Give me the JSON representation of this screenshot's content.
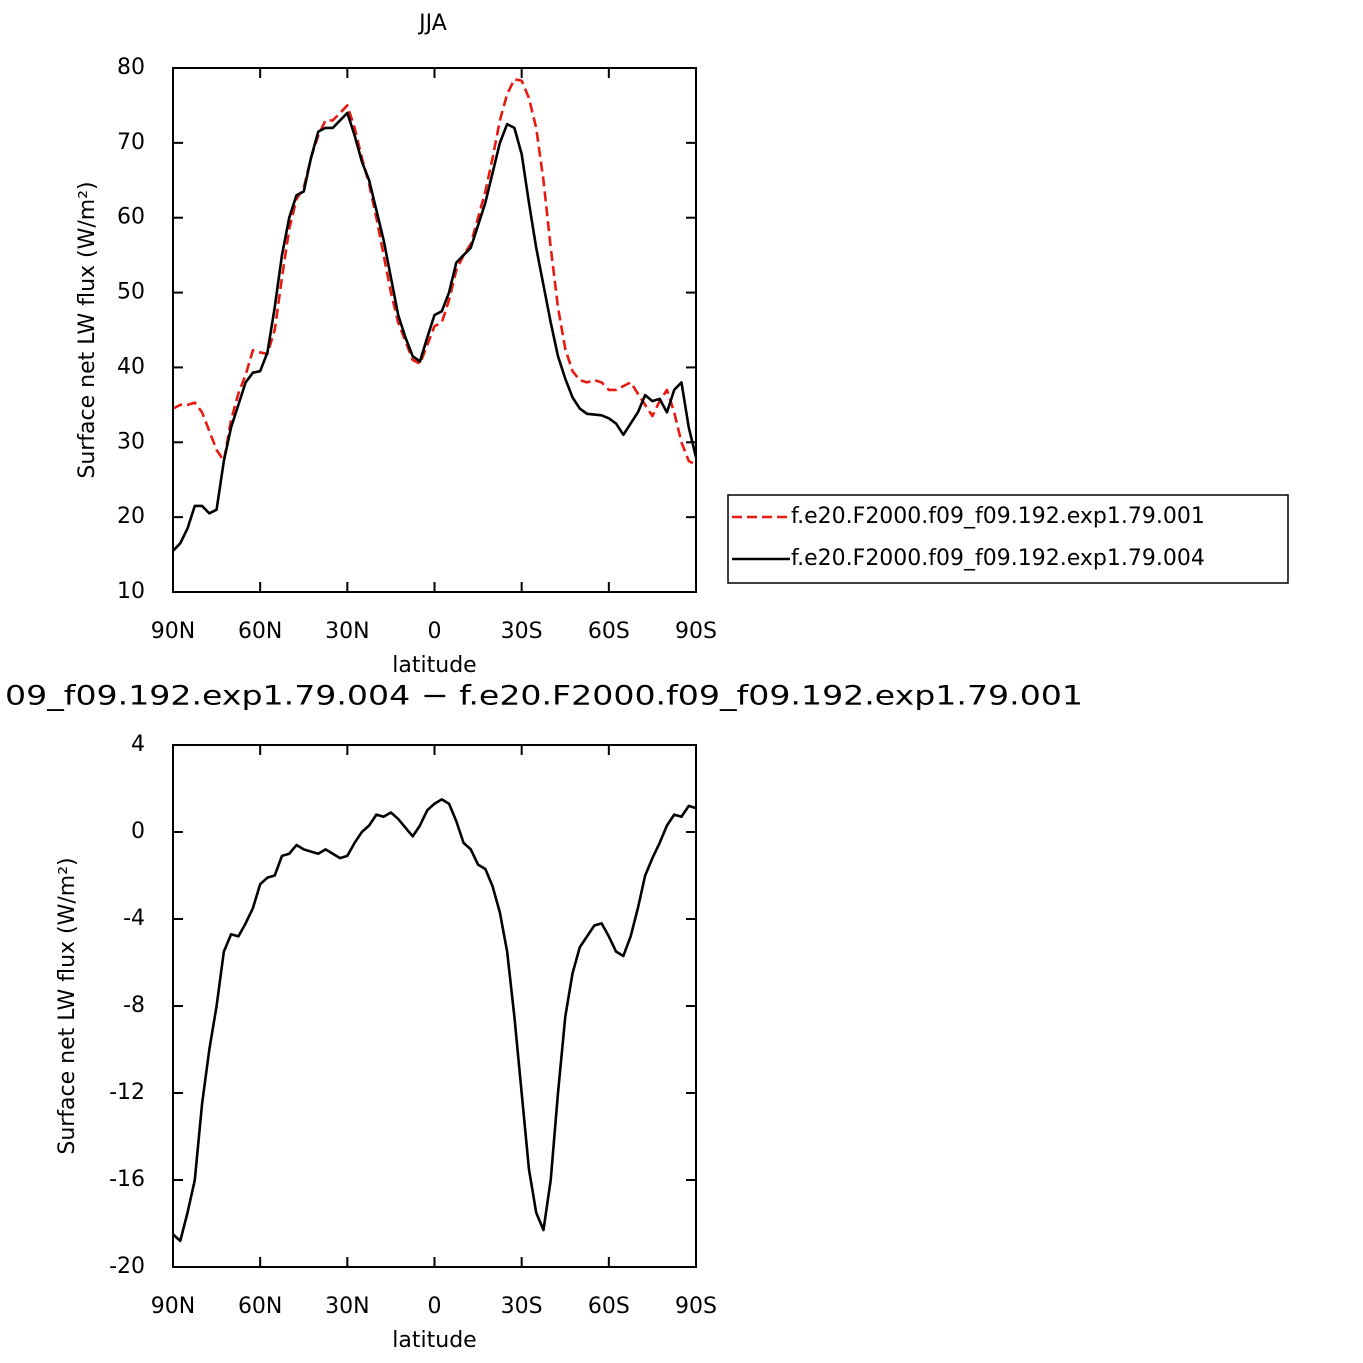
{
  "chart_data": [
    {
      "type": "line",
      "title": "JJA",
      "xlabel": "latitude",
      "ylabel": "Surface net LW flux (W/m²)",
      "x": [
        90,
        87.5,
        85,
        82.5,
        80,
        77.5,
        75,
        72.5,
        70,
        67.5,
        65,
        62.5,
        60,
        57.5,
        55,
        52.5,
        50,
        47.5,
        45,
        42.5,
        40,
        37.5,
        35,
        32.5,
        30,
        27.5,
        25,
        22.5,
        20,
        17.5,
        15,
        12.5,
        10,
        7.5,
        5,
        2.5,
        0,
        -2.5,
        -5,
        -7.5,
        -10,
        -12.5,
        -15,
        -17.5,
        -20,
        -22.5,
        -25,
        -27.5,
        -30,
        -32.5,
        -35,
        -37.5,
        -40,
        -42.5,
        -45,
        -47.5,
        -50,
        -52.5,
        -55,
        -57.5,
        -60,
        -62.5,
        -65,
        -67.5,
        -70,
        -72.5,
        -75,
        -77.5,
        -80,
        -82.5,
        -85,
        -87.5,
        -90
      ],
      "series": [
        {
          "name": "f.e20.F2000.f09_f09.192.exp1.79.001",
          "color": "#e8190f",
          "linestyle": "dashed",
          "values": [
            34.5,
            35,
            35,
            35.3,
            34,
            31.5,
            29,
            27.5,
            33,
            36.5,
            39,
            42.3,
            42,
            41.8,
            45,
            52,
            58.5,
            62.5,
            64,
            68,
            71,
            73,
            73,
            74,
            75,
            72,
            68,
            64.5,
            60,
            55,
            50,
            46,
            43.5,
            41,
            40.5,
            43,
            45.5,
            46,
            49,
            53,
            55,
            56.5,
            60,
            63.5,
            68,
            73,
            76.5,
            78.5,
            78.3,
            76,
            72,
            65,
            56,
            48,
            42.5,
            39.5,
            38.3,
            38,
            38.3,
            38,
            37,
            37,
            37.5,
            38,
            36.5,
            35,
            33.5,
            35.5,
            37,
            34,
            30,
            27.5,
            27
          ]
        },
        {
          "name": "f.e20.F2000.f09_f09.192.exp1.79.004",
          "color": "#000000",
          "linestyle": "solid",
          "values": [
            15.5,
            16.5,
            18.5,
            21.5,
            21.5,
            20.5,
            21,
            27.5,
            32,
            35,
            38,
            39.3,
            39.5,
            42,
            48,
            55,
            60,
            63,
            63.5,
            68,
            71.5,
            72,
            72,
            73,
            74,
            71,
            67.5,
            65,
            61,
            57,
            52,
            47,
            44,
            41.5,
            40.8,
            44,
            47,
            47.5,
            50,
            54,
            55,
            56,
            59,
            62,
            66,
            70,
            72.5,
            72,
            68.5,
            62,
            56,
            51,
            46,
            41.5,
            38.5,
            36,
            34.5,
            33.8,
            33.7,
            33.6,
            33.2,
            32.5,
            31,
            32.5,
            34,
            36.3,
            35.5,
            35.8,
            34,
            37,
            38,
            32,
            28
          ]
        }
      ],
      "xlim": [
        90,
        -90
      ],
      "xticks": [
        {
          "value": 90,
          "label": "90N"
        },
        {
          "value": 60,
          "label": "60N"
        },
        {
          "value": 30,
          "label": "30N"
        },
        0,
        {
          "value": -30,
          "label": "30S"
        },
        {
          "value": -60,
          "label": "60S"
        },
        {
          "value": -90,
          "label": "90S"
        }
      ],
      "ylim": [
        10,
        80
      ],
      "yticks": [
        10,
        20,
        30,
        40,
        50,
        60,
        70,
        80
      ],
      "legend": "right"
    },
    {
      "type": "line",
      "title": "09_f09.192.exp1.79.004 − f.e20.F2000.f09_f09.192.exp1.79.001",
      "xlabel": "latitude",
      "ylabel": "Surface net LW flux (W/m²)",
      "x": [
        90,
        87.5,
        85,
        82.5,
        80,
        77.5,
        75,
        72.5,
        70,
        67.5,
        65,
        62.5,
        60,
        57.5,
        55,
        52.5,
        50,
        47.5,
        45,
        42.5,
        40,
        37.5,
        35,
        32.5,
        30,
        27.5,
        25,
        22.5,
        20,
        17.5,
        15,
        12.5,
        10,
        7.5,
        5,
        2.5,
        0,
        -2.5,
        -5,
        -7.5,
        -10,
        -12.5,
        -15,
        -17.5,
        -20,
        -22.5,
        -25,
        -27.5,
        -30,
        -32.5,
        -35,
        -37.5,
        -40,
        -42.5,
        -45,
        -47.5,
        -50,
        -52.5,
        -55,
        -57.5,
        -60,
        -62.5,
        -65,
        -67.5,
        -70,
        -72.5,
        -75,
        -77.5,
        -80,
        -82.5,
        -85,
        -87.5,
        -90
      ],
      "series": [
        {
          "color": "#000000",
          "linestyle": "solid",
          "values": [
            -18.5,
            -18.8,
            -17.5,
            -16,
            -12.5,
            -10,
            -8,
            -5.5,
            -4.7,
            -4.8,
            -4.2,
            -3.5,
            -2.4,
            -2.1,
            -2,
            -1.1,
            -1,
            -0.6,
            -0.8,
            -0.9,
            -1,
            -0.8,
            -1,
            -1.2,
            -1.1,
            -0.5,
            0,
            0.3,
            0.8,
            0.7,
            0.9,
            0.6,
            0.2,
            -0.2,
            0.3,
            1,
            1.3,
            1.5,
            1.3,
            0.5,
            -0.5,
            -0.8,
            -1.5,
            -1.7,
            -2.5,
            -3.7,
            -5.5,
            -8.5,
            -12,
            -15.5,
            -17.5,
            -18.3,
            -16,
            -12,
            -8.5,
            -6.5,
            -5.3,
            -4.8,
            -4.3,
            -4.2,
            -4.8,
            -5.5,
            -5.7,
            -4.8,
            -3.5,
            -2,
            -1.2,
            -0.5,
            0.3,
            0.8,
            0.7,
            1.2,
            1.1
          ]
        }
      ],
      "xlim": [
        90,
        -90
      ],
      "xticks": [
        {
          "value": 90,
          "label": "90N"
        },
        {
          "value": 60,
          "label": "60N"
        },
        {
          "value": 30,
          "label": "30N"
        },
        0,
        {
          "value": -30,
          "label": "30S"
        },
        {
          "value": -60,
          "label": "60S"
        },
        {
          "value": -90,
          "label": "90S"
        }
      ],
      "ylim": [
        -20,
        4
      ],
      "yticks": [
        -20,
        -16,
        -12,
        -8,
        -4,
        0,
        4
      ]
    }
  ]
}
